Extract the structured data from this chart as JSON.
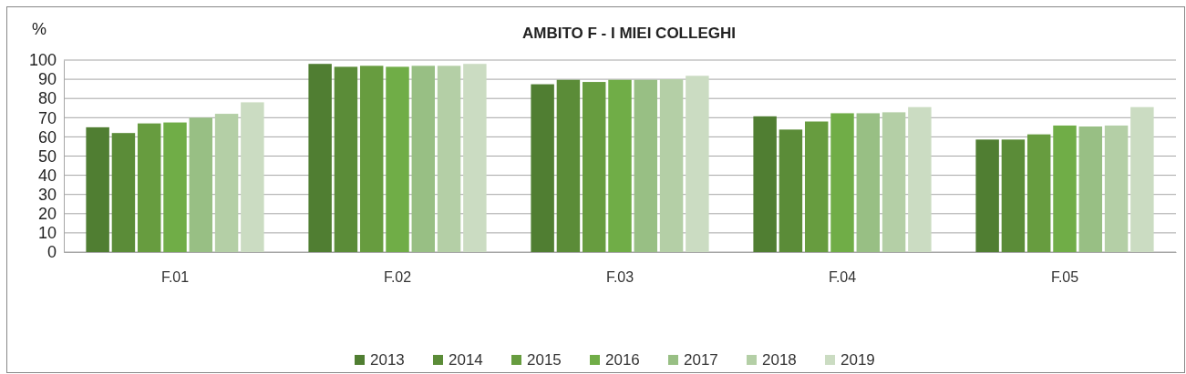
{
  "chart_data": {
    "type": "bar",
    "title": "AMBITO F - I MIEI COLLEGHI",
    "ylabel": "%",
    "categories": [
      "F.01",
      "F.02",
      "F.03",
      "F.04",
      "F.05"
    ],
    "series": [
      {
        "name": "2013",
        "color": "#507e32",
        "values": [
          65,
          98,
          87.4,
          70.7,
          58.6
        ]
      },
      {
        "name": "2014",
        "color": "#5b8c38",
        "values": [
          62,
          96.5,
          89.7,
          63.8,
          58.6
        ]
      },
      {
        "name": "2015",
        "color": "#679c3f",
        "values": [
          67,
          97,
          88.6,
          68,
          61.3
        ]
      },
      {
        "name": "2016",
        "color": "#70ad47",
        "values": [
          67.5,
          96.5,
          89.7,
          72.3,
          65.9
        ]
      },
      {
        "name": "2017",
        "color": "#98bf84",
        "values": [
          70,
          97,
          89.7,
          72.3,
          65.4
        ]
      },
      {
        "name": "2018",
        "color": "#b4cfa6",
        "values": [
          72,
          97,
          90,
          72.8,
          65.9
        ]
      },
      {
        "name": "2019",
        "color": "#cbdcc2",
        "values": [
          78,
          98,
          91.8,
          75.5,
          75.5
        ]
      }
    ],
    "ylim": [
      0,
      100
    ],
    "yticks": [
      0,
      10,
      20,
      30,
      40,
      50,
      60,
      70,
      80,
      90,
      100
    ],
    "grid": "y",
    "legend": "bottom"
  }
}
